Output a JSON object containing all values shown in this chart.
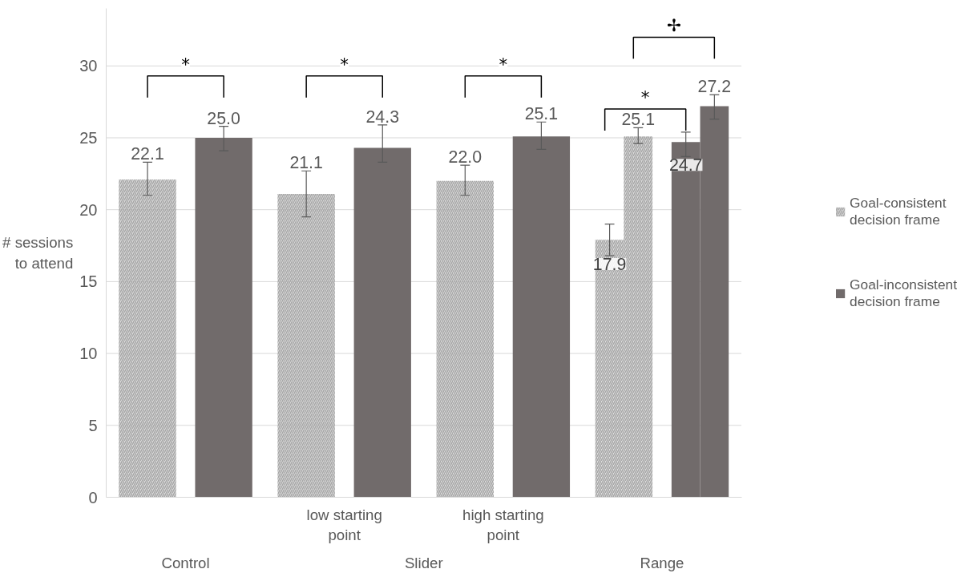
{
  "chart_data": {
    "type": "bar",
    "ylabel": "# sessions to attend",
    "categories": [
      "Control",
      "low starting point",
      "high starting point",
      "Range"
    ],
    "series": [
      {
        "name": "Goal-consistent decision frame",
        "color": "#a6a6a6",
        "values": [
          22.1,
          21.1,
          22.0,
          17.9
        ],
        "value_labels": [
          "22.1",
          "21.1",
          "22.0",
          "17.9"
        ],
        "errors": [
          [
            21.0,
            23.3
          ],
          [
            19.5,
            22.7
          ],
          [
            21.0,
            23.1
          ],
          [
            16.8,
            19.0
          ]
        ]
      },
      {
        "color": "#a6a6a6",
        "values": [
          null,
          null,
          null,
          25.1
        ],
        "value_labels": [
          null,
          null,
          null,
          "25.1"
        ],
        "errors": [
          null,
          null,
          null,
          [
            24.6,
            25.7
          ]
        ]
      },
      {
        "name": "Goal-inconsistent decision frame",
        "color": "#716b6b",
        "values": [
          25.0,
          24.3,
          25.1,
          24.7
        ],
        "value_labels": [
          "25.0",
          "24.3",
          "25.1",
          "24.7"
        ],
        "errors": [
          [
            24.1,
            25.8
          ],
          [
            23.3,
            25.9
          ],
          [
            24.2,
            26.1
          ],
          [
            23.7,
            25.4
          ]
        ]
      },
      {
        "color": "#716b6b",
        "values": [
          null,
          null,
          null,
          27.2
        ],
        "value_labels": [
          null,
          null,
          null,
          "27.2"
        ],
        "errors": [
          null,
          null,
          null,
          [
            26.3,
            28.0
          ]
        ]
      }
    ],
    "ylim": [
      0,
      34
    ],
    "yticks": [
      0,
      5,
      10,
      15,
      20,
      25,
      30
    ],
    "grid": "y",
    "legend": "right",
    "annotations": [
      "*",
      "*",
      "*",
      "*",
      "✢",
      "Slider"
    ]
  }
}
